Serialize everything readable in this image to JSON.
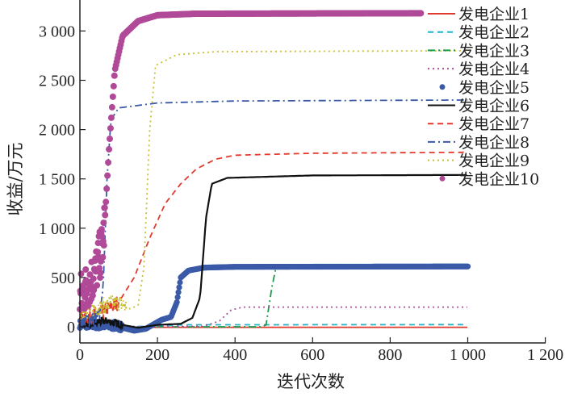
{
  "chart_data": {
    "type": "line",
    "title": "",
    "xlabel": "迭代次数",
    "ylabel": "收益/万元",
    "xlim": [
      0,
      1200
    ],
    "ylim": [
      -150,
      3300
    ],
    "xticks": [
      0,
      200,
      400,
      600,
      800,
      1000,
      1200
    ],
    "xtick_labels": [
      "0",
      "200",
      "400",
      "600",
      "800",
      "1 000",
      "1 200"
    ],
    "yticks": [
      0,
      500,
      1000,
      1500,
      2000,
      2500,
      3000
    ],
    "ytick_labels": [
      "0",
      "500",
      "1 000",
      "1 500",
      "2 000",
      "2 500",
      "3 000"
    ],
    "grid": false,
    "legend_position": "top-right",
    "series": [
      {
        "name": "发电企业1",
        "color": "#e03a2f",
        "style": "solid",
        "noise_until": 0,
        "noise": 0,
        "points": [
          [
            0,
            -5
          ],
          [
            1000,
            -5
          ]
        ]
      },
      {
        "name": "发电企业2",
        "color": "#1fb3c8",
        "style": "dashed",
        "noise_until": 0,
        "noise": 0,
        "points": [
          [
            0,
            0
          ],
          [
            200,
            5
          ],
          [
            260,
            20
          ],
          [
            1000,
            22
          ]
        ]
      },
      {
        "name": "发电企业3",
        "color": "#1a9a4a",
        "style": "dashdot",
        "noise_until": 0,
        "noise": 0,
        "points": [
          [
            0,
            0
          ],
          [
            470,
            0
          ],
          [
            480,
            20
          ],
          [
            495,
            400
          ],
          [
            505,
            590
          ],
          [
            520,
            600
          ],
          [
            1000,
            605
          ]
        ]
      },
      {
        "name": "发电企业4",
        "color": "#a8509a",
        "style": "dotted",
        "noise_until": 0,
        "noise": 0,
        "points": [
          [
            0,
            0
          ],
          [
            320,
            5
          ],
          [
            360,
            60
          ],
          [
            390,
            170
          ],
          [
            420,
            200
          ],
          [
            1000,
            200
          ]
        ]
      },
      {
        "name": "发电企业5",
        "color": "#3a5aa8",
        "style": "dots",
        "noise_until": 110,
        "noise": 40,
        "points": [
          [
            0,
            20
          ],
          [
            100,
            0
          ],
          [
            140,
            -40
          ],
          [
            170,
            -20
          ],
          [
            210,
            70
          ],
          [
            235,
            100
          ],
          [
            250,
            250
          ],
          [
            260,
            500
          ],
          [
            280,
            570
          ],
          [
            320,
            600
          ],
          [
            400,
            608
          ],
          [
            1000,
            612
          ]
        ]
      },
      {
        "name": "发电企业6",
        "color": "#111111",
        "style": "solid",
        "noise_until": 110,
        "noise": 40,
        "points": [
          [
            0,
            20
          ],
          [
            70,
            60
          ],
          [
            110,
            20
          ],
          [
            150,
            -10
          ],
          [
            200,
            20
          ],
          [
            260,
            30
          ],
          [
            290,
            90
          ],
          [
            310,
            300
          ],
          [
            325,
            1100
          ],
          [
            340,
            1450
          ],
          [
            380,
            1510
          ],
          [
            600,
            1535
          ],
          [
            1000,
            1540
          ]
        ]
      },
      {
        "name": "发电企业7",
        "color": "#e03a2f",
        "style": "dashed",
        "noise_until": 100,
        "noise": 80,
        "points": [
          [
            0,
            80
          ],
          [
            60,
            150
          ],
          [
            100,
            250
          ],
          [
            140,
            500
          ],
          [
            180,
            900
          ],
          [
            220,
            1250
          ],
          [
            260,
            1450
          ],
          [
            300,
            1600
          ],
          [
            350,
            1700
          ],
          [
            400,
            1740
          ],
          [
            600,
            1760
          ],
          [
            1000,
            1770
          ]
        ]
      },
      {
        "name": "发电企业8",
        "color": "#3a5aa8",
        "style": "dashdot",
        "noise_until": 55,
        "noise": 80,
        "points": [
          [
            0,
            50
          ],
          [
            50,
            100
          ],
          [
            60,
            400
          ],
          [
            70,
            1500
          ],
          [
            80,
            2100
          ],
          [
            100,
            2220
          ],
          [
            200,
            2270
          ],
          [
            400,
            2290
          ],
          [
            1000,
            2300
          ]
        ]
      },
      {
        "name": "发电企业9",
        "color": "#c8c030",
        "style": "dotted",
        "noise_until": 120,
        "noise": 90,
        "points": [
          [
            0,
            150
          ],
          [
            100,
            250
          ],
          [
            130,
            180
          ],
          [
            150,
            220
          ],
          [
            165,
            600
          ],
          [
            180,
            2000
          ],
          [
            195,
            2650
          ],
          [
            250,
            2760
          ],
          [
            350,
            2790
          ],
          [
            1000,
            2800
          ]
        ]
      },
      {
        "name": "发电企业10",
        "color": "#b04a98",
        "style": "dots",
        "noise_until": 65,
        "noise": 250,
        "points": [
          [
            0,
            250
          ],
          [
            40,
            500
          ],
          [
            60,
            800
          ],
          [
            75,
            1800
          ],
          [
            90,
            2600
          ],
          [
            110,
            2950
          ],
          [
            150,
            3100
          ],
          [
            200,
            3160
          ],
          [
            300,
            3175
          ],
          [
            880,
            3180
          ]
        ]
      }
    ]
  }
}
